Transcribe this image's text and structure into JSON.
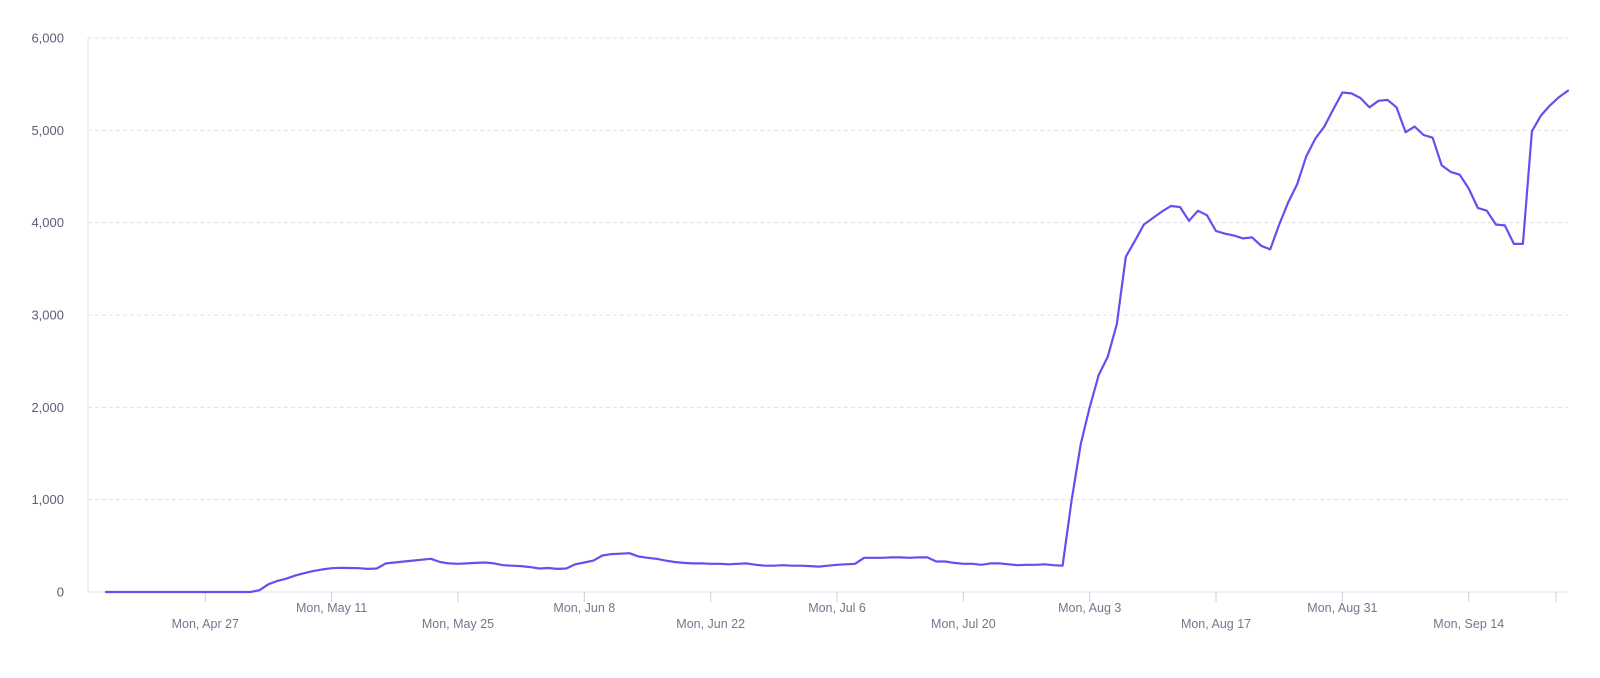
{
  "colors": {
    "series": "#6350ef",
    "grid": "#e1e0ea",
    "tick_text": "#5f5d75"
  },
  "chart_data": {
    "type": "line",
    "title": "",
    "xlabel": "",
    "ylabel": "",
    "grid": true,
    "legend": "none",
    "ylim": [
      0,
      6000
    ],
    "yticks": [
      0,
      1000,
      2000,
      3000,
      4000,
      5000,
      6000
    ],
    "ytick_labels": [
      "0",
      "1,000",
      "2,000",
      "3,000",
      "4,000",
      "5,000",
      "6,000"
    ],
    "xlim": [
      "2020-04-14",
      "2020-09-25"
    ],
    "xticks": [
      {
        "date": "2020-04-27",
        "label": "Mon, Apr 27"
      },
      {
        "date": "2020-05-11",
        "label": "Mon, May 11"
      },
      {
        "date": "2020-05-25",
        "label": "Mon, May 25"
      },
      {
        "date": "2020-06-08",
        "label": "Mon, Jun 8"
      },
      {
        "date": "2020-06-22",
        "label": "Mon, Jun 22"
      },
      {
        "date": "2020-07-06",
        "label": "Mon, Jul 6"
      },
      {
        "date": "2020-07-20",
        "label": "Mon, Jul 20"
      },
      {
        "date": "2020-08-03",
        "label": "Mon, Aug 3"
      },
      {
        "date": "2020-08-17",
        "label": "Mon, Aug 17"
      },
      {
        "date": "2020-08-31",
        "label": "Mon, Aug 31"
      },
      {
        "date": "2020-09-14",
        "label": "Mon, Sep 14"
      }
    ],
    "series": [
      {
        "values": [
          [
            "2020-04-16",
            0
          ],
          [
            "2020-05-02",
            0
          ],
          [
            "2020-05-03",
            20
          ],
          [
            "2020-05-04",
            85
          ],
          [
            "2020-05-05",
            120
          ],
          [
            "2020-05-06",
            145
          ],
          [
            "2020-05-07",
            180
          ],
          [
            "2020-05-08",
            205
          ],
          [
            "2020-05-09",
            228
          ],
          [
            "2020-05-10",
            245
          ],
          [
            "2020-05-11",
            258
          ],
          [
            "2020-05-12",
            262
          ],
          [
            "2020-05-13",
            260
          ],
          [
            "2020-05-14",
            258
          ],
          [
            "2020-05-15",
            250
          ],
          [
            "2020-05-16",
            255
          ],
          [
            "2020-05-17",
            310
          ],
          [
            "2020-05-18",
            320
          ],
          [
            "2020-05-19",
            330
          ],
          [
            "2020-05-20",
            340
          ],
          [
            "2020-05-21",
            350
          ],
          [
            "2020-05-22",
            360
          ],
          [
            "2020-05-23",
            325
          ],
          [
            "2020-05-24",
            310
          ],
          [
            "2020-05-25",
            305
          ],
          [
            "2020-05-26",
            310
          ],
          [
            "2020-05-27",
            315
          ],
          [
            "2020-05-28",
            320
          ],
          [
            "2020-05-29",
            310
          ],
          [
            "2020-05-30",
            290
          ],
          [
            "2020-05-31",
            285
          ],
          [
            "2020-06-01",
            280
          ],
          [
            "2020-06-02",
            270
          ],
          [
            "2020-06-03",
            255
          ],
          [
            "2020-06-04",
            260
          ],
          [
            "2020-06-05",
            250
          ],
          [
            "2020-06-06",
            255
          ],
          [
            "2020-06-07",
            300
          ],
          [
            "2020-06-08",
            320
          ],
          [
            "2020-06-09",
            340
          ],
          [
            "2020-06-10",
            395
          ],
          [
            "2020-06-11",
            410
          ],
          [
            "2020-06-12",
            415
          ],
          [
            "2020-06-13",
            420
          ],
          [
            "2020-06-14",
            385
          ],
          [
            "2020-06-15",
            370
          ],
          [
            "2020-06-16",
            360
          ],
          [
            "2020-06-17",
            340
          ],
          [
            "2020-06-18",
            325
          ],
          [
            "2020-06-19",
            315
          ],
          [
            "2020-06-20",
            310
          ],
          [
            "2020-06-21",
            310
          ],
          [
            "2020-06-22",
            305
          ],
          [
            "2020-06-23",
            305
          ],
          [
            "2020-06-24",
            300
          ],
          [
            "2020-06-25",
            305
          ],
          [
            "2020-06-26",
            310
          ],
          [
            "2020-06-27",
            295
          ],
          [
            "2020-06-28",
            285
          ],
          [
            "2020-06-29",
            285
          ],
          [
            "2020-06-30",
            290
          ],
          [
            "2020-07-01",
            285
          ],
          [
            "2020-07-02",
            285
          ],
          [
            "2020-07-03",
            280
          ],
          [
            "2020-07-04",
            275
          ],
          [
            "2020-07-05",
            285
          ],
          [
            "2020-07-06",
            295
          ],
          [
            "2020-07-07",
            300
          ],
          [
            "2020-07-08",
            305
          ],
          [
            "2020-07-09",
            370
          ],
          [
            "2020-07-10",
            370
          ],
          [
            "2020-07-11",
            370
          ],
          [
            "2020-07-12",
            375
          ],
          [
            "2020-07-13",
            375
          ],
          [
            "2020-07-14",
            370
          ],
          [
            "2020-07-15",
            375
          ],
          [
            "2020-07-16",
            375
          ],
          [
            "2020-07-17",
            330
          ],
          [
            "2020-07-18",
            330
          ],
          [
            "2020-07-19",
            315
          ],
          [
            "2020-07-20",
            305
          ],
          [
            "2020-07-21",
            305
          ],
          [
            "2020-07-22",
            295
          ],
          [
            "2020-07-23",
            310
          ],
          [
            "2020-07-24",
            310
          ],
          [
            "2020-07-25",
            300
          ],
          [
            "2020-07-26",
            290
          ],
          [
            "2020-07-27",
            295
          ],
          [
            "2020-07-28",
            295
          ],
          [
            "2020-07-29",
            300
          ],
          [
            "2020-07-30",
            290
          ],
          [
            "2020-07-31",
            285
          ],
          [
            "2020-08-01",
            1000
          ],
          [
            "2020-08-02",
            1600
          ],
          [
            "2020-08-03",
            2000
          ],
          [
            "2020-08-04",
            2350
          ],
          [
            "2020-08-05",
            2550
          ],
          [
            "2020-08-06",
            2900
          ],
          [
            "2020-08-07",
            3630
          ],
          [
            "2020-08-08",
            3800
          ],
          [
            "2020-08-09",
            3980
          ],
          [
            "2020-08-10",
            4050
          ],
          [
            "2020-08-11",
            4120
          ],
          [
            "2020-08-12",
            4180
          ],
          [
            "2020-08-13",
            4170
          ],
          [
            "2020-08-14",
            4020
          ],
          [
            "2020-08-15",
            4130
          ],
          [
            "2020-08-16",
            4080
          ],
          [
            "2020-08-17",
            3910
          ],
          [
            "2020-08-18",
            3880
          ],
          [
            "2020-08-19",
            3860
          ],
          [
            "2020-08-20",
            3830
          ],
          [
            "2020-08-21",
            3840
          ],
          [
            "2020-08-22",
            3750
          ],
          [
            "2020-08-23",
            3710
          ],
          [
            "2020-08-24",
            3980
          ],
          [
            "2020-08-25",
            4220
          ],
          [
            "2020-08-26",
            4420
          ],
          [
            "2020-08-27",
            4720
          ],
          [
            "2020-08-28",
            4910
          ],
          [
            "2020-08-29",
            5040
          ],
          [
            "2020-08-30",
            5230
          ],
          [
            "2020-08-31",
            5410
          ],
          [
            "2020-09-01",
            5400
          ],
          [
            "2020-09-02",
            5350
          ],
          [
            "2020-09-03",
            5250
          ],
          [
            "2020-09-04",
            5320
          ],
          [
            "2020-09-05",
            5330
          ],
          [
            "2020-09-06",
            5250
          ],
          [
            "2020-09-07",
            4980
          ],
          [
            "2020-09-08",
            5040
          ],
          [
            "2020-09-09",
            4950
          ],
          [
            "2020-09-10",
            4920
          ],
          [
            "2020-09-11",
            4620
          ],
          [
            "2020-09-12",
            4550
          ],
          [
            "2020-09-13",
            4520
          ],
          [
            "2020-09-14",
            4370
          ],
          [
            "2020-09-15",
            4160
          ],
          [
            "2020-09-16",
            4130
          ],
          [
            "2020-09-17",
            3980
          ],
          [
            "2020-09-18",
            3970
          ],
          [
            "2020-09-19",
            3770
          ],
          [
            "2020-09-20",
            3770
          ],
          [
            "2020-09-21",
            4990
          ],
          [
            "2020-09-22",
            5160
          ],
          [
            "2020-09-23",
            5270
          ],
          [
            "2020-09-24",
            5360
          ],
          [
            "2020-09-25",
            5430
          ]
        ]
      }
    ]
  }
}
